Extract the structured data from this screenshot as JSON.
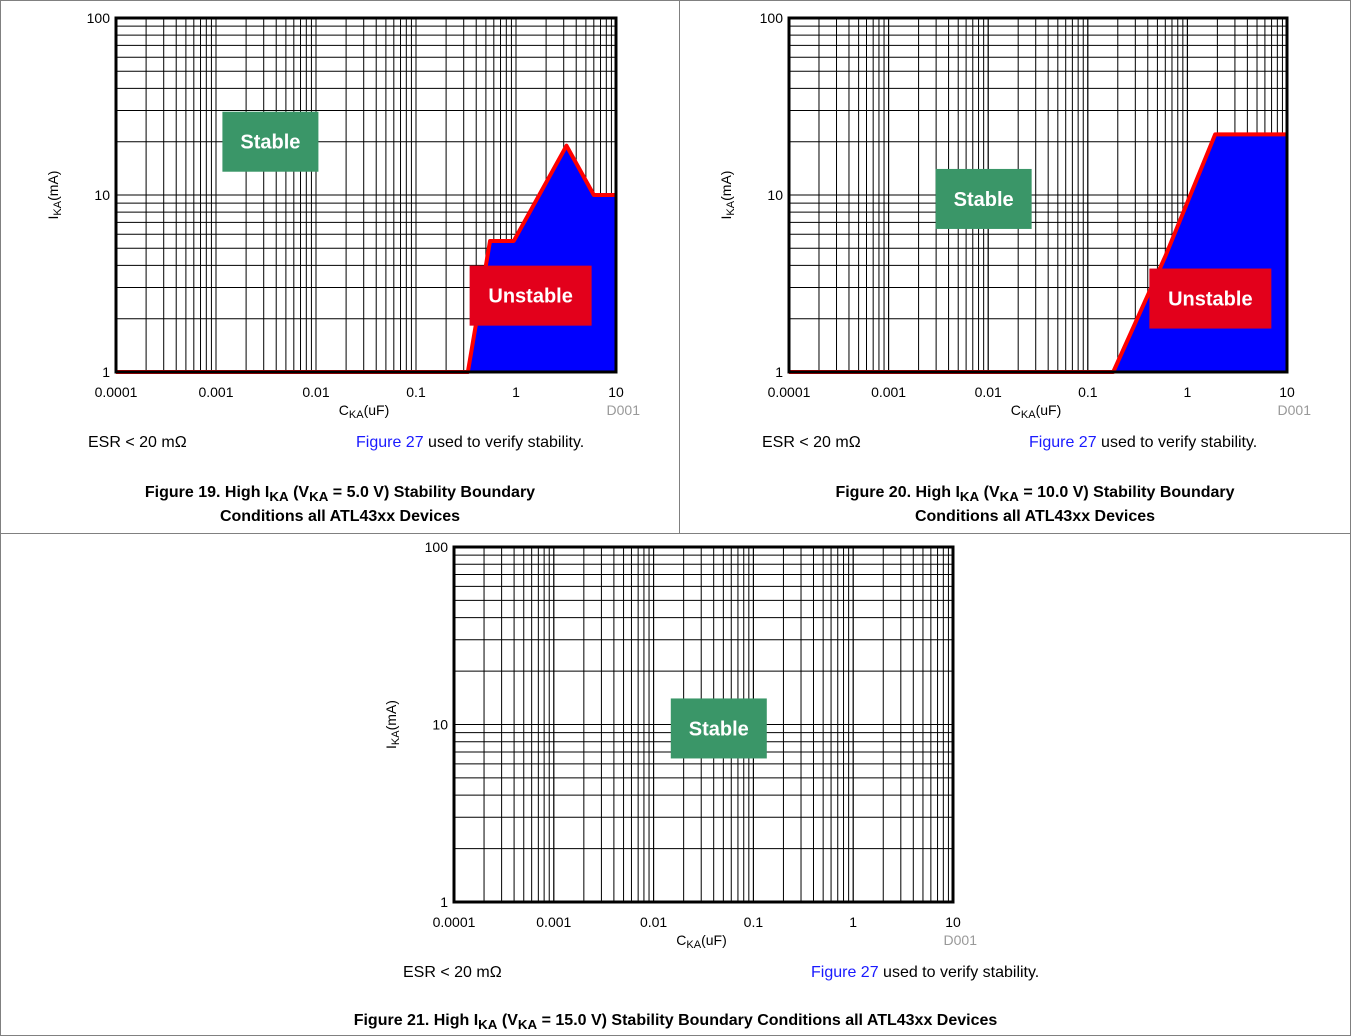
{
  "colors": {
    "stable": "#3a9668",
    "unstable_label": "#e3001b",
    "unstable_fill": "#0000ff",
    "boundary": "#ff0000",
    "link": "#1a1aff",
    "code": "#999999"
  },
  "chart_data": [
    {
      "type": "area",
      "x_scale": "log",
      "y_scale": "log",
      "xlim": [
        0.0001,
        10
      ],
      "ylim": [
        1,
        100
      ],
      "x_ticks": [
        "0.0001",
        "0.001",
        "0.01",
        "0.1",
        "1",
        "10"
      ],
      "y_ticks": [
        "1",
        "10",
        "100"
      ],
      "xlabel_main": "C",
      "xlabel_sub": "KA",
      "xlabel_tail": "(uF)",
      "ylabel_main": "I",
      "ylabel_sub": "KA",
      "ylabel_tail": "(mA)",
      "code": "D001",
      "grid": true,
      "regions": [
        {
          "label": "Stable",
          "color": "#3a9668",
          "at": [
            0.0035,
            20
          ]
        },
        {
          "label": "Unstable",
          "color": "#e3001b",
          "at": [
            1.4,
            2.7
          ]
        }
      ],
      "boundary": {
        "x": [
          0.33,
          0.55,
          0.95,
          3.2,
          6.0,
          10
        ],
        "y": [
          1,
          5.5,
          5.5,
          19,
          10,
          10
        ]
      },
      "esr": "ESR < 20 mΩ",
      "link_text": "Figure 27",
      "verify_text": " used to verify stability.",
      "caption_pre": "Figure 19. High I",
      "caption_sub": "KA",
      "caption_mid": " (V",
      "caption_sub2": "KA",
      "caption_post": " = 5.0 V) Stability Boundary",
      "caption_line2": "Conditions all ATL43xx Devices"
    },
    {
      "type": "area",
      "x_scale": "log",
      "y_scale": "log",
      "xlim": [
        0.0001,
        10
      ],
      "ylim": [
        1,
        100
      ],
      "x_ticks": [
        "0.0001",
        "0.001",
        "0.01",
        "0.1",
        "1",
        "10"
      ],
      "y_ticks": [
        "1",
        "10",
        "100"
      ],
      "xlabel_main": "C",
      "xlabel_sub": "KA",
      "xlabel_tail": "(uF)",
      "ylabel_main": "I",
      "ylabel_sub": "KA",
      "ylabel_tail": "(mA)",
      "code": "D001",
      "grid": true,
      "regions": [
        {
          "label": "Stable",
          "color": "#3a9668",
          "at": [
            0.009,
            9.5
          ]
        },
        {
          "label": "Unstable",
          "color": "#e3001b",
          "at": [
            1.7,
            2.6
          ]
        }
      ],
      "boundary": {
        "x": [
          0.18,
          0.6,
          1.9,
          10
        ],
        "y": [
          1,
          4.5,
          22,
          22
        ]
      },
      "esr": "ESR < 20 mΩ",
      "link_text": "Figure 27",
      "verify_text": " used to verify stability.",
      "caption_pre": "Figure 20. High I",
      "caption_sub": "KA",
      "caption_mid": " (V",
      "caption_sub2": "KA",
      "caption_post": " = 10.0 V) Stability Boundary",
      "caption_line2": "Conditions all ATL43xx Devices"
    },
    {
      "type": "area",
      "x_scale": "log",
      "y_scale": "log",
      "xlim": [
        0.0001,
        10
      ],
      "ylim": [
        1,
        100
      ],
      "x_ticks": [
        "0.0001",
        "0.001",
        "0.01",
        "0.1",
        "1",
        "10"
      ],
      "y_ticks": [
        "1",
        "10",
        "100"
      ],
      "xlabel_main": "C",
      "xlabel_sub": "KA",
      "xlabel_tail": "(uF)",
      "ylabel_main": "I",
      "ylabel_sub": "KA",
      "ylabel_tail": "(mA)",
      "code": "D001",
      "grid": true,
      "regions": [
        {
          "label": "Stable",
          "color": "#3a9668",
          "at": [
            0.045,
            9.5
          ]
        }
      ],
      "boundary": null,
      "esr": "ESR < 20 mΩ",
      "link_text": "Figure 27",
      "verify_text": " used to verify stability.",
      "caption_pre": "Figure 21. High I",
      "caption_sub": "KA",
      "caption_mid": " (V",
      "caption_sub2": "KA",
      "caption_post": " = 15.0 V) Stability Boundary Conditions all ATL43xx Devices",
      "caption_line2": ""
    }
  ]
}
